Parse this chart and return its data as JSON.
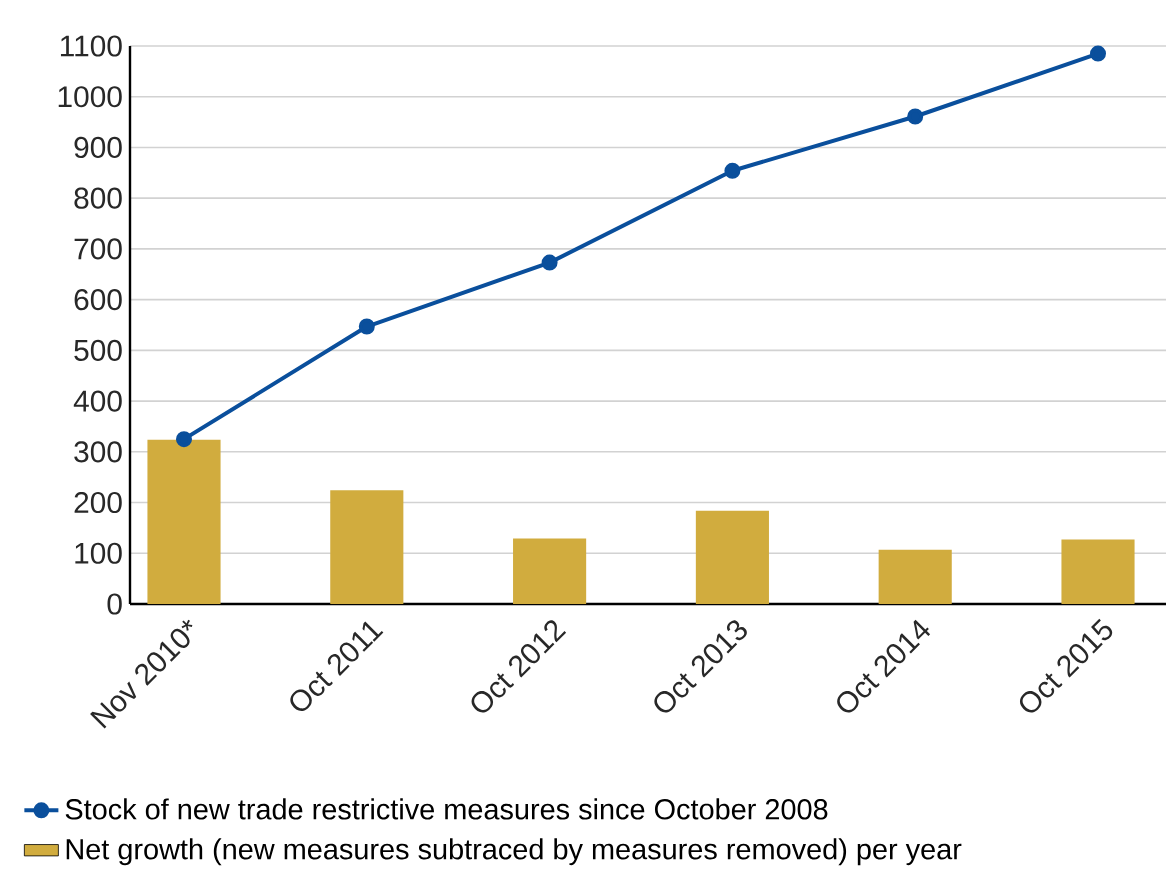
{
  "chart_data": {
    "type": "bar",
    "categories": [
      "Nov 2010*",
      "Oct 2011",
      "Oct 2012",
      "Oct 2013",
      "Oct 2014",
      "Oct 2015"
    ],
    "series": [
      {
        "name": "Stock of new trade restrictive measures since October 2008",
        "type": "line",
        "color": "#0a4f9c",
        "values": [
          325,
          547,
          673,
          854,
          961,
          1085
        ]
      },
      {
        "name": "Net growth (new measures subtraced by measures removed) per year",
        "color": "#d1ac3e",
        "values": [
          324,
          224,
          129,
          184,
          107,
          127
        ]
      }
    ],
    "ylim": [
      0,
      1100
    ],
    "yticks": [
      0,
      100,
      200,
      300,
      400,
      500,
      600,
      700,
      800,
      900,
      1000,
      1100
    ],
    "grid": "y",
    "legend": "bottom",
    "marker": "circle"
  }
}
